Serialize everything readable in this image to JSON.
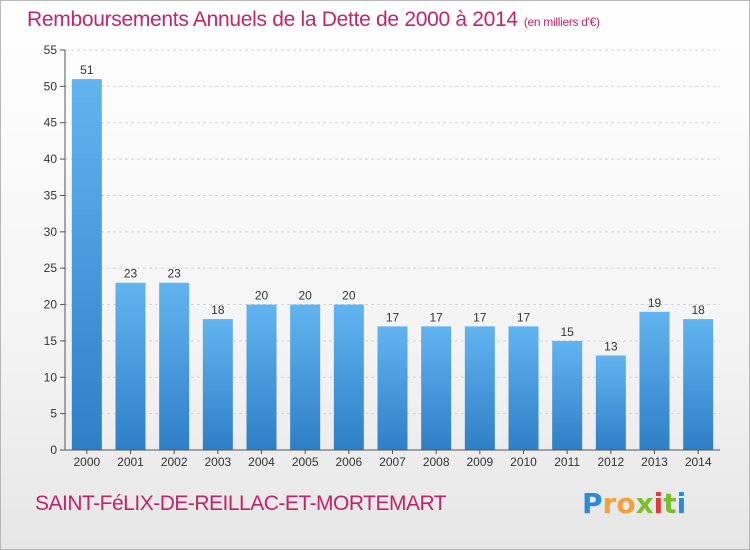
{
  "chart_data": {
    "type": "bar",
    "title": "Remboursements Annuels de la Dette de 2000 à 2014",
    "unit_note": "(en milliers d'€)",
    "categories": [
      "2000",
      "2001",
      "2002",
      "2003",
      "2004",
      "2005",
      "2006",
      "2007",
      "2008",
      "2009",
      "2010",
      "2011",
      "2012",
      "2013",
      "2014"
    ],
    "values": [
      51,
      23,
      23,
      18,
      20,
      20,
      20,
      17,
      17,
      17,
      17,
      15,
      13,
      19,
      18
    ],
    "ylim": [
      0,
      55
    ],
    "yticks": [
      0,
      5,
      10,
      15,
      20,
      25,
      30,
      35,
      40,
      45,
      50,
      55
    ],
    "grid": true,
    "bar_color": "#4a9de0"
  },
  "commune": "SAINT-FéLIX-DE-REILLAC-ET-MORTEMART",
  "logo": {
    "letters": [
      "P",
      "r",
      "o",
      "x",
      "i",
      "t",
      "i"
    ],
    "colors": [
      "#2d8ad6",
      "#f2a23a",
      "#f2a23a",
      "#7cbf2e",
      "#e23c3c",
      "#7cbf2e",
      "#2d8ad6"
    ]
  },
  "colors": {
    "accent": "#c0256a"
  }
}
